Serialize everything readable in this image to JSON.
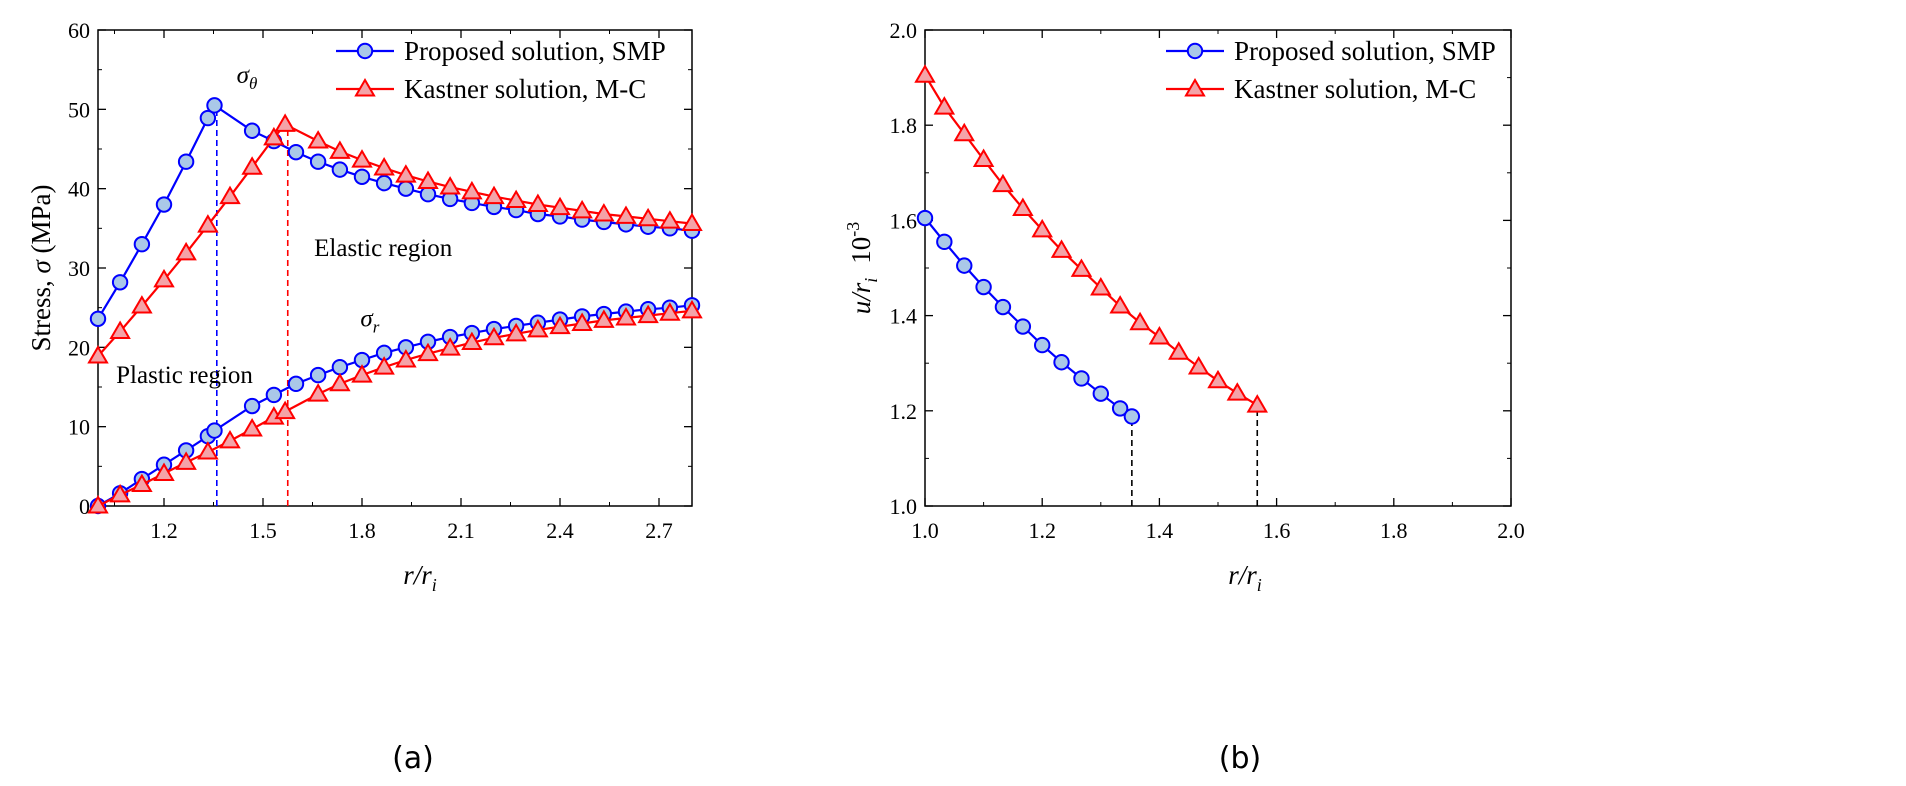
{
  "chart_data": [
    {
      "type": "line",
      "panel_label": "(a)",
      "xlabel_main": "r/r",
      "xlabel_sub": "i",
      "ylabel_main": "Stress, ",
      "ylabel_sym": "σ",
      "ylabel_unit": " (MPa)",
      "xlim": [
        1.0,
        2.8
      ],
      "ylim": [
        0,
        60
      ],
      "xticks": [
        1.2,
        1.5,
        1.8,
        2.1,
        2.4,
        2.7
      ],
      "xtick_labels": [
        "1.2",
        "1.5",
        "1.8",
        "2.1",
        "2.4",
        "2.7"
      ],
      "yticks": [
        0,
        10,
        20,
        30,
        40,
        50,
        60
      ],
      "ytick_labels": [
        "0",
        "10",
        "20",
        "30",
        "40",
        "50",
        "60"
      ],
      "legend_position": "top-right",
      "grid": false,
      "series": [
        {
          "name": "Proposed solution, SMP",
          "color": "#0000ff",
          "marker": "circle",
          "x": [
            1.0,
            1.067,
            1.133,
            1.2,
            1.267,
            1.333,
            1.353,
            1.467,
            1.533,
            1.6,
            1.667,
            1.733,
            1.8,
            1.867,
            1.933,
            2.0,
            2.067,
            2.133,
            2.2,
            2.267,
            2.333,
            2.4,
            2.467,
            2.533,
            2.6,
            2.667,
            2.733,
            2.8
          ],
          "y": [
            23.6,
            28.2,
            33.0,
            38.0,
            43.4,
            48.9,
            50.5,
            47.3,
            46.0,
            44.6,
            43.4,
            42.4,
            41.5,
            40.7,
            40.0,
            39.3,
            38.7,
            38.2,
            37.7,
            37.3,
            36.8,
            36.5,
            36.1,
            35.8,
            35.5,
            35.2,
            35.0,
            34.7
          ]
        },
        {
          "name": "Kastner solution, M-C",
          "color": "#ff0000",
          "marker": "triangle",
          "x": [
            1.0,
            1.067,
            1.133,
            1.2,
            1.267,
            1.333,
            1.4,
            1.467,
            1.533,
            1.567,
            1.667,
            1.733,
            1.8,
            1.867,
            1.933,
            2.0,
            2.067,
            2.133,
            2.2,
            2.267,
            2.333,
            2.4,
            2.467,
            2.533,
            2.6,
            2.667,
            2.733,
            2.8
          ],
          "y": [
            18.9,
            22.0,
            25.2,
            28.5,
            31.9,
            35.4,
            39.0,
            42.7,
            46.4,
            48.1,
            46.0,
            44.7,
            43.6,
            42.6,
            41.7,
            40.9,
            40.2,
            39.6,
            39.0,
            38.5,
            38.0,
            37.6,
            37.2,
            36.8,
            36.5,
            36.2,
            35.9,
            35.6
          ]
        },
        {
          "name": "",
          "color": "#0000ff",
          "marker": "circle",
          "x": [
            1.0,
            1.067,
            1.133,
            1.2,
            1.267,
            1.333,
            1.353,
            1.467,
            1.533,
            1.6,
            1.667,
            1.733,
            1.8,
            1.867,
            1.933,
            2.0,
            2.067,
            2.133,
            2.2,
            2.267,
            2.333,
            2.4,
            2.467,
            2.533,
            2.6,
            2.667,
            2.733,
            2.8
          ],
          "y": [
            0.0,
            1.6,
            3.4,
            5.2,
            7.0,
            8.8,
            9.5,
            12.6,
            14.0,
            15.4,
            16.5,
            17.5,
            18.4,
            19.3,
            20.0,
            20.7,
            21.3,
            21.8,
            22.3,
            22.7,
            23.1,
            23.5,
            23.9,
            24.2,
            24.5,
            24.8,
            25.0,
            25.3
          ]
        },
        {
          "name": "",
          "color": "#ff0000",
          "marker": "triangle",
          "x": [
            1.0,
            1.067,
            1.133,
            1.2,
            1.267,
            1.333,
            1.4,
            1.467,
            1.533,
            1.567,
            1.667,
            1.733,
            1.8,
            1.867,
            1.933,
            2.0,
            2.067,
            2.133,
            2.2,
            2.267,
            2.333,
            2.4,
            2.467,
            2.533,
            2.6,
            2.667,
            2.733,
            2.8
          ],
          "y": [
            0.0,
            1.4,
            2.7,
            4.1,
            5.5,
            6.8,
            8.2,
            9.7,
            11.2,
            11.9,
            14.1,
            15.4,
            16.5,
            17.5,
            18.4,
            19.2,
            19.9,
            20.6,
            21.2,
            21.7,
            22.2,
            22.6,
            23.0,
            23.4,
            23.7,
            24.0,
            24.3,
            24.6
          ]
        }
      ],
      "reference_lines": [
        {
          "x": 1.36,
          "y_top": 50.5,
          "color": "#0000ff"
        },
        {
          "x": 1.575,
          "y_top": 47.8,
          "color": "#ff0000"
        }
      ],
      "annotations": [
        {
          "sym": "σ",
          "sub": "θ",
          "x": 1.42,
          "y": 53.3
        },
        {
          "sym": "σ",
          "sub": "r",
          "x": 1.795,
          "y": 22.6
        },
        {
          "text": "Elastic region",
          "x": 1.655,
          "y": 31.5
        },
        {
          "text": "Plastic region",
          "x": 1.055,
          "y": 15.5
        }
      ]
    },
    {
      "type": "line",
      "panel_label": "(b)",
      "xlabel_main": "r/r",
      "xlabel_sub": "i",
      "ylabel_main": "u/r",
      "ylabel_sub": "i",
      "ylabel_extra": "10",
      "ylabel_exp": "-3",
      "xlim": [
        1.0,
        2.0
      ],
      "ylim": [
        1.0,
        2.0
      ],
      "xticks": [
        1.0,
        1.2,
        1.4,
        1.6,
        1.8,
        2.0
      ],
      "xtick_labels": [
        "1.0",
        "1.2",
        "1.4",
        "1.6",
        "1.8",
        "2.0"
      ],
      "yticks": [
        1.0,
        1.2,
        1.4,
        1.6,
        1.8,
        2.0
      ],
      "ytick_labels": [
        "1.0",
        "1.2",
        "1.4",
        "1.6",
        "1.8",
        "2.0"
      ],
      "legend_position": "top-right",
      "grid": false,
      "series": [
        {
          "name": "Proposed solution, SMP",
          "color": "#0000ff",
          "marker": "circle",
          "x": [
            1.0,
            1.033,
            1.067,
            1.1,
            1.133,
            1.167,
            1.2,
            1.233,
            1.267,
            1.3,
            1.333,
            1.353
          ],
          "y": [
            1.605,
            1.555,
            1.505,
            1.46,
            1.418,
            1.377,
            1.338,
            1.302,
            1.268,
            1.236,
            1.205,
            1.188
          ]
        },
        {
          "name": "Kastner solution, M-C",
          "color": "#ff0000",
          "marker": "triangle",
          "x": [
            1.0,
            1.033,
            1.067,
            1.1,
            1.133,
            1.167,
            1.2,
            1.233,
            1.267,
            1.3,
            1.333,
            1.367,
            1.4,
            1.433,
            1.467,
            1.5,
            1.533,
            1.567
          ],
          "y": [
            1.905,
            1.838,
            1.782,
            1.728,
            1.675,
            1.625,
            1.58,
            1.537,
            1.497,
            1.458,
            1.42,
            1.385,
            1.355,
            1.323,
            1.292,
            1.263,
            1.237,
            1.212
          ]
        }
      ],
      "reference_lines": [
        {
          "x": 1.353,
          "y_top": 1.188,
          "color": "#000000"
        },
        {
          "x": 1.567,
          "y_top": 1.212,
          "color": "#000000"
        }
      ]
    }
  ]
}
